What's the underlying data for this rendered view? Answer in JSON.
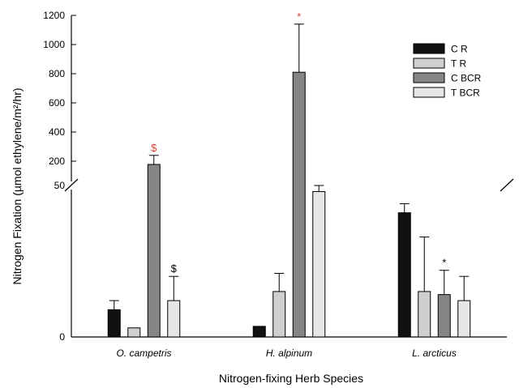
{
  "chart_data": {
    "type": "bar",
    "title": "",
    "xlabel": "Nitrogen-fixing Herb Species",
    "ylabel": "Nitrogen Fixation (µmol ethylene/m²/hr)",
    "categories": [
      "O. campetris",
      "H. alpinum",
      "L. arcticus"
    ],
    "y_break": {
      "upper_start": 200,
      "upper_end": 1200,
      "lower_top_label": "50"
    },
    "upper_ticks": [
      "1200",
      "1000",
      "800",
      "600",
      "400",
      "200"
    ],
    "lower_ticks": [
      "50",
      "0"
    ],
    "series": [
      {
        "name": "C R",
        "color": "#111111",
        "values": [
          9,
          3.5,
          41
        ],
        "errors": [
          3,
          0,
          3
        ]
      },
      {
        "name": "T R",
        "color": "#cfcfcf",
        "values": [
          3,
          15,
          15
        ],
        "errors": [
          0,
          6,
          18
        ]
      },
      {
        "name": "C BCR",
        "color": "#858585",
        "values": [
          180,
          810,
          14
        ],
        "errors": [
          60,
          330,
          8
        ]
      },
      {
        "name": "T BCR",
        "color": "#e6e6e6",
        "values": [
          12,
          48,
          12
        ],
        "errors": [
          8,
          2,
          8
        ]
      }
    ],
    "annotations": [
      {
        "text": "$",
        "color": "#e03c31",
        "category": 0,
        "series": 2
      },
      {
        "text": "$",
        "color": "#000000",
        "category": 0,
        "series": 3
      },
      {
        "text": "*",
        "color": "#e03c31",
        "category": 1,
        "series": 2
      },
      {
        "text": "*",
        "color": "#000000",
        "category": 2,
        "series": 2
      }
    ],
    "legend_position": "top-right",
    "grid": false
  }
}
